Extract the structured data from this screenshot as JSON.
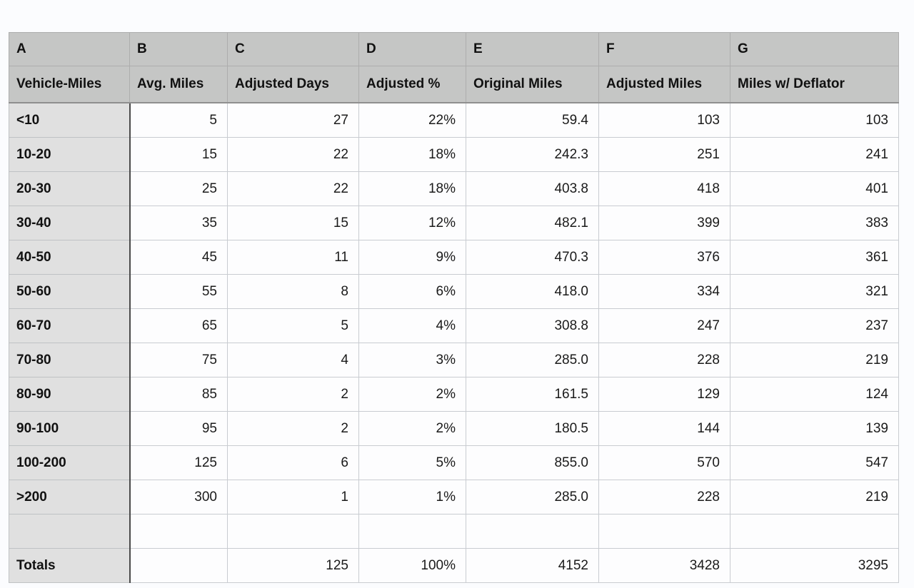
{
  "table": {
    "column_letters": [
      "A",
      "B",
      "C",
      "D",
      "E",
      "F",
      "G"
    ],
    "column_headers": [
      "Vehicle-Miles",
      "Avg. Miles",
      "Adjusted Days",
      "Adjusted %",
      "Original Miles",
      "Adjusted Miles",
      "Miles w/ Deflator"
    ],
    "rows": [
      {
        "type": "data",
        "label": "<10",
        "cells": [
          "5",
          "27",
          "22%",
          "59.4",
          "103",
          "103"
        ]
      },
      {
        "type": "data",
        "label": "10-20",
        "cells": [
          "15",
          "22",
          "18%",
          "242.3",
          "251",
          "241"
        ]
      },
      {
        "type": "data",
        "label": "20-30",
        "cells": [
          "25",
          "22",
          "18%",
          "403.8",
          "418",
          "401"
        ]
      },
      {
        "type": "data",
        "label": "30-40",
        "cells": [
          "35",
          "15",
          "12%",
          "482.1",
          "399",
          "383"
        ]
      },
      {
        "type": "data",
        "label": "40-50",
        "cells": [
          "45",
          "11",
          "9%",
          "470.3",
          "376",
          "361"
        ]
      },
      {
        "type": "data",
        "label": "50-60",
        "cells": [
          "55",
          "8",
          "6%",
          "418.0",
          "334",
          "321"
        ]
      },
      {
        "type": "data",
        "label": "60-70",
        "cells": [
          "65",
          "5",
          "4%",
          "308.8",
          "247",
          "237"
        ]
      },
      {
        "type": "data",
        "label": "70-80",
        "cells": [
          "75",
          "4",
          "3%",
          "285.0",
          "228",
          "219"
        ]
      },
      {
        "type": "data",
        "label": "80-90",
        "cells": [
          "85",
          "2",
          "2%",
          "161.5",
          "129",
          "124"
        ]
      },
      {
        "type": "data",
        "label": "90-100",
        "cells": [
          "95",
          "2",
          "2%",
          "180.5",
          "144",
          "139"
        ]
      },
      {
        "type": "data",
        "label": "100-200",
        "cells": [
          "125",
          "6",
          "5%",
          "855.0",
          "570",
          "547"
        ]
      },
      {
        "type": "data",
        "label": ">200",
        "cells": [
          "300",
          "1",
          "1%",
          "285.0",
          "228",
          "219"
        ]
      },
      {
        "type": "empty",
        "label": "",
        "cells": [
          "",
          "",
          "",
          "",
          "",
          ""
        ]
      },
      {
        "type": "totals",
        "label": "Totals",
        "cells": [
          "",
          "125",
          "100%",
          "4152",
          "3428",
          "3295"
        ]
      }
    ],
    "colors": {
      "header_bg": "#c5c6c5",
      "row_label_bg": "#e0e0e0",
      "cell_bg": "#fdfdfe",
      "dark_border": "#4a4a4a",
      "header_bottom_border": "#8f8f8f",
      "light_border": "#c9ccd1",
      "page_bg": "#fbfcfe"
    }
  }
}
